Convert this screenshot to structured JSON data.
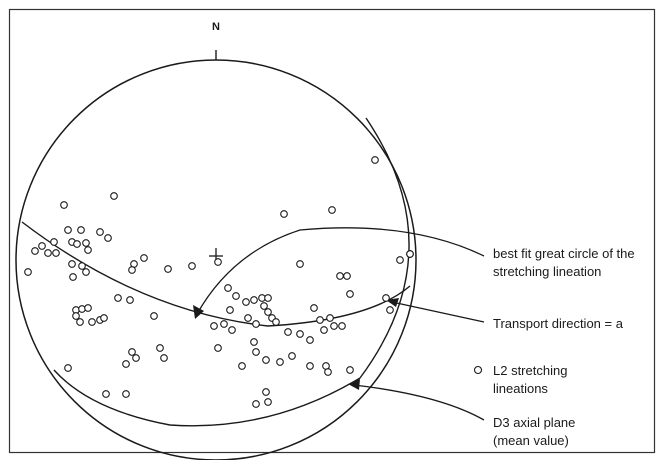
{
  "diagram": {
    "north_label": "N",
    "labels": {
      "great_circle": [
        "best fit great circle of the",
        "stretching lineation"
      ],
      "transport": "Transport direction = a",
      "legend": [
        "L2 stretching",
        "lineations"
      ],
      "axial_plane": [
        "D3 axial plane",
        "(mean value)"
      ]
    },
    "colors": {
      "line": "#1a1a1a",
      "border": "#333333",
      "point_fill": "#ffffff"
    }
  }
}
